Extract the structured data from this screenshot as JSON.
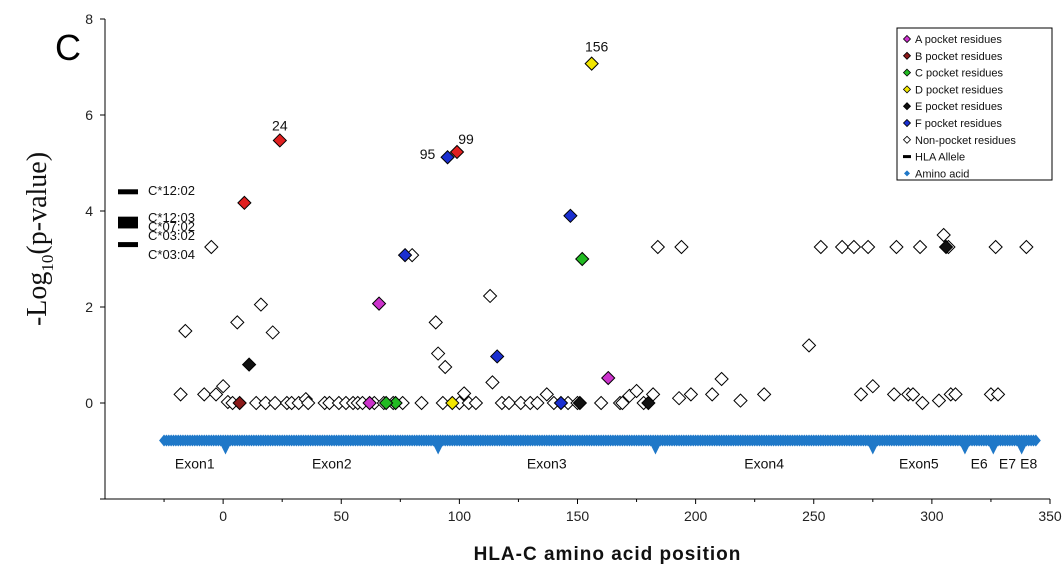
{
  "panel_label": "C",
  "colors": {
    "pocket_A": "#cc33cc",
    "pocket_B": "#8b1a1a",
    "pocket_C": "#22bb22",
    "pocket_D": "#f2e600",
    "pocket_E": "#111111",
    "pocket_F": "#1a2fd0",
    "non_pocket": "#ffffff",
    "red_pocket": "#e02020",
    "amino_acid": "#1f78c8",
    "allele": "#000000"
  },
  "chart_data": {
    "type": "scatter",
    "title": "",
    "xlabel": "HLA-C amino acid position",
    "ylabel": "-Log10(p-value)",
    "ylabel_parts": {
      "main": "-Log",
      "sub": "10",
      "tail": "(p-value)"
    },
    "xlim": [
      -50,
      350
    ],
    "ylim": [
      -2,
      8
    ],
    "xticks": [
      0,
      50,
      100,
      150,
      200,
      250,
      300,
      350
    ],
    "yticks": [
      -2,
      0,
      2,
      4,
      6,
      8
    ],
    "xtick_labels": [
      "0",
      "50",
      "100",
      "150",
      "200",
      "250",
      "300",
      "350"
    ],
    "ytick_labels": [
      "",
      "0",
      "2",
      "4",
      "6",
      "8"
    ],
    "legend": {
      "placement": "top-right",
      "entries": [
        {
          "label": "A pocket residues",
          "marker": "diamond",
          "color": "#cc33cc"
        },
        {
          "label": "B pocket residues",
          "marker": "diamond",
          "color": "#8b1a1a"
        },
        {
          "label": "C pocket residues",
          "marker": "diamond",
          "color": "#22bb22"
        },
        {
          "label": "D pocket residues",
          "marker": "diamond",
          "color": "#f2e600"
        },
        {
          "label": "E pocket residues",
          "marker": "diamond",
          "color": "#111111"
        },
        {
          "label": "F pocket residues",
          "marker": "diamond",
          "color": "#1a2fd0"
        },
        {
          "label": "Non-pocket residues",
          "marker": "diamond-open",
          "color": "#ffffff"
        },
        {
          "label": "HLA Allele",
          "marker": "dash",
          "color": "#000000"
        },
        {
          "label": "Amino acid",
          "marker": "diamond-small",
          "color": "#1f78c8"
        }
      ]
    },
    "series": [
      {
        "name": "A pocket residues",
        "points": [
          [
            66,
            2.07
          ],
          [
            163,
            0.52
          ],
          [
            62,
            0.0
          ]
        ]
      },
      {
        "name": "B pocket residues",
        "points": [
          [
            7,
            0.0
          ]
        ]
      },
      {
        "name": "C pocket residues",
        "points": [
          [
            152,
            3.0
          ],
          [
            73,
            0.0
          ],
          [
            69,
            0.0
          ]
        ]
      },
      {
        "name": "D pocket residues",
        "points": [
          [
            156,
            7.07
          ],
          [
            97,
            0.0
          ]
        ]
      },
      {
        "name": "E pocket residues",
        "points": [
          [
            11,
            0.8
          ],
          [
            306,
            3.25
          ],
          [
            151,
            0.0
          ],
          [
            180,
            0.0
          ]
        ]
      },
      {
        "name": "F pocket residues",
        "points": [
          [
            95,
            5.12
          ],
          [
            147,
            3.9
          ],
          [
            77,
            3.08
          ],
          [
            116,
            0.97
          ],
          [
            143,
            0.0
          ]
        ]
      },
      {
        "name": "red-filled",
        "points": [
          [
            24,
            5.47
          ],
          [
            99,
            5.23
          ],
          [
            9,
            4.17
          ]
        ]
      },
      {
        "name": "Non-pocket residues",
        "points": [
          [
            -18,
            0.18
          ],
          [
            -16,
            1.5
          ],
          [
            -8,
            0.18
          ],
          [
            -5,
            3.25
          ],
          [
            -3,
            0.18
          ],
          [
            0,
            0.35
          ],
          [
            2,
            0.02
          ],
          [
            4,
            0.0
          ],
          [
            6,
            1.68
          ],
          [
            14,
            0.0
          ],
          [
            16,
            2.05
          ],
          [
            18,
            0.0
          ],
          [
            21,
            1.47
          ],
          [
            22,
            0.0
          ],
          [
            27,
            0.0
          ],
          [
            29,
            0.0
          ],
          [
            32,
            0.0
          ],
          [
            35,
            0.08
          ],
          [
            36,
            0.0
          ],
          [
            43,
            0.0
          ],
          [
            45,
            0.0
          ],
          [
            49,
            0.0
          ],
          [
            52,
            0.0
          ],
          [
            55,
            0.0
          ],
          [
            57,
            0.0
          ],
          [
            59,
            0.0
          ],
          [
            64,
            0.0
          ],
          [
            68,
            0.0
          ],
          [
            72,
            0.0
          ],
          [
            76,
            0.0
          ],
          [
            80,
            3.08
          ],
          [
            84,
            0.0
          ],
          [
            90,
            1.68
          ],
          [
            91,
            1.03
          ],
          [
            93,
            0.0
          ],
          [
            94,
            0.75
          ],
          [
            100,
            0.0
          ],
          [
            102,
            0.2
          ],
          [
            104,
            0.0
          ],
          [
            107,
            0.0
          ],
          [
            113,
            2.23
          ],
          [
            114,
            0.43
          ],
          [
            118,
            0.0
          ],
          [
            121,
            0.0
          ],
          [
            126,
            0.0
          ],
          [
            130,
            0.0
          ],
          [
            133,
            0.0
          ],
          [
            137,
            0.18
          ],
          [
            140,
            0.0
          ],
          [
            146,
            0.0
          ],
          [
            150,
            0.0
          ],
          [
            160,
            0.0
          ],
          [
            168,
            0.0
          ],
          [
            169,
            0.0
          ],
          [
            172,
            0.15
          ],
          [
            175,
            0.25
          ],
          [
            178,
            0.0
          ],
          [
            182,
            0.18
          ],
          [
            184,
            3.25
          ],
          [
            194,
            3.25
          ],
          [
            193,
            0.1
          ],
          [
            198,
            0.18
          ],
          [
            207,
            0.18
          ],
          [
            211,
            0.5
          ],
          [
            219,
            0.05
          ],
          [
            229,
            0.18
          ],
          [
            248,
            1.2
          ],
          [
            253,
            3.25
          ],
          [
            262,
            3.25
          ],
          [
            267,
            3.25
          ],
          [
            273,
            3.25
          ],
          [
            270,
            0.18
          ],
          [
            275,
            0.35
          ],
          [
            285,
            3.25
          ],
          [
            284,
            0.18
          ],
          [
            290,
            0.18
          ],
          [
            292,
            0.18
          ],
          [
            295,
            3.25
          ],
          [
            296,
            0.0
          ],
          [
            303,
            0.05
          ],
          [
            305,
            3.5
          ],
          [
            307,
            3.25
          ],
          [
            308,
            0.18
          ],
          [
            310,
            0.18
          ],
          [
            325,
            0.18
          ],
          [
            327,
            3.25
          ],
          [
            328,
            0.18
          ],
          [
            340,
            3.25
          ]
        ]
      }
    ],
    "annotations": [
      {
        "text": "156",
        "x": 156,
        "y": 7.07
      },
      {
        "text": "24",
        "x": 24,
        "y": 5.47
      },
      {
        "text": "99",
        "x": 99,
        "y": 5.23
      },
      {
        "text": "95",
        "x": 95,
        "y": 5.12
      }
    ],
    "hla_alleles": [
      {
        "label": "C*12:02",
        "y": 4.4
      },
      {
        "label": "C*12:03",
        "y": 3.83
      },
      {
        "label": "C*07:02",
        "y": 3.72
      },
      {
        "label": "C*03:02",
        "y": 3.3
      },
      {
        "label": "C*03:04",
        "y": 3.3
      }
    ],
    "amino_acid_bar": {
      "y": -0.78,
      "x_start": -25,
      "x_end": 344,
      "dense": true
    },
    "exons": [
      {
        "label": "Exon1",
        "start": -25,
        "end": 1
      },
      {
        "label": "Exon2",
        "start": 1,
        "end": 91
      },
      {
        "label": "Exon3",
        "start": 91,
        "end": 183
      },
      {
        "label": "Exon4",
        "start": 183,
        "end": 275
      },
      {
        "label": "Exon5",
        "start": 275,
        "end": 314
      },
      {
        "label": "E6",
        "start": 314,
        "end": 326
      },
      {
        "label": "E7",
        "start": 326,
        "end": 338
      },
      {
        "label": "E8",
        "start": 338,
        "end": 344
      }
    ]
  }
}
